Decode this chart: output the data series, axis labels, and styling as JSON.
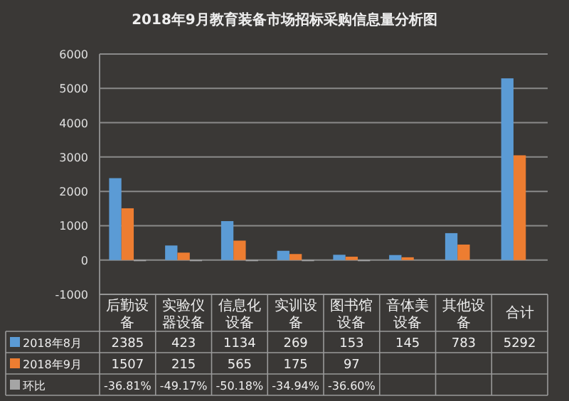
{
  "chart_data": {
    "type": "bar",
    "title": "2018年9月教育装备市场招标采购信息量分析图",
    "categories": [
      "后勤设备",
      "实验仪器设备",
      "信息化设备",
      "实训设备",
      "图书馆设备",
      "音体美设备",
      "其他设备",
      "合计"
    ],
    "series": [
      {
        "name": "2018年8月",
        "color": "#5b9bd5",
        "values": [
          2385,
          423,
          1134,
          269,
          153,
          145,
          783,
          5292
        ],
        "value_labels": [
          "2385",
          "423",
          "1134",
          "269",
          "153",
          "145",
          "783",
          "5292"
        ]
      },
      {
        "name": "2018年9月",
        "color": "#ed7d31",
        "values": [
          1507,
          215,
          565,
          175,
          97,
          80,
          450,
          3050
        ],
        "value_labels": [
          "1507",
          "215",
          "565",
          "175",
          "97",
          null,
          null,
          null
        ]
      },
      {
        "name": "环比",
        "color": "#a5a5a5",
        "values": [
          -0.3681,
          -0.4917,
          -0.5018,
          -0.3494,
          -0.366,
          null,
          null,
          null
        ],
        "value_labels": [
          "-36.81%",
          "-49.17%",
          "-50.18%",
          "-34.94%",
          "-36.60%",
          null,
          null,
          null
        ]
      }
    ],
    "ylim": [
      -1000,
      6000
    ],
    "yticks": [
      -1000,
      0,
      1000,
      2000,
      3000,
      4000,
      5000,
      6000
    ],
    "grid": "y",
    "legend": "bottom"
  }
}
